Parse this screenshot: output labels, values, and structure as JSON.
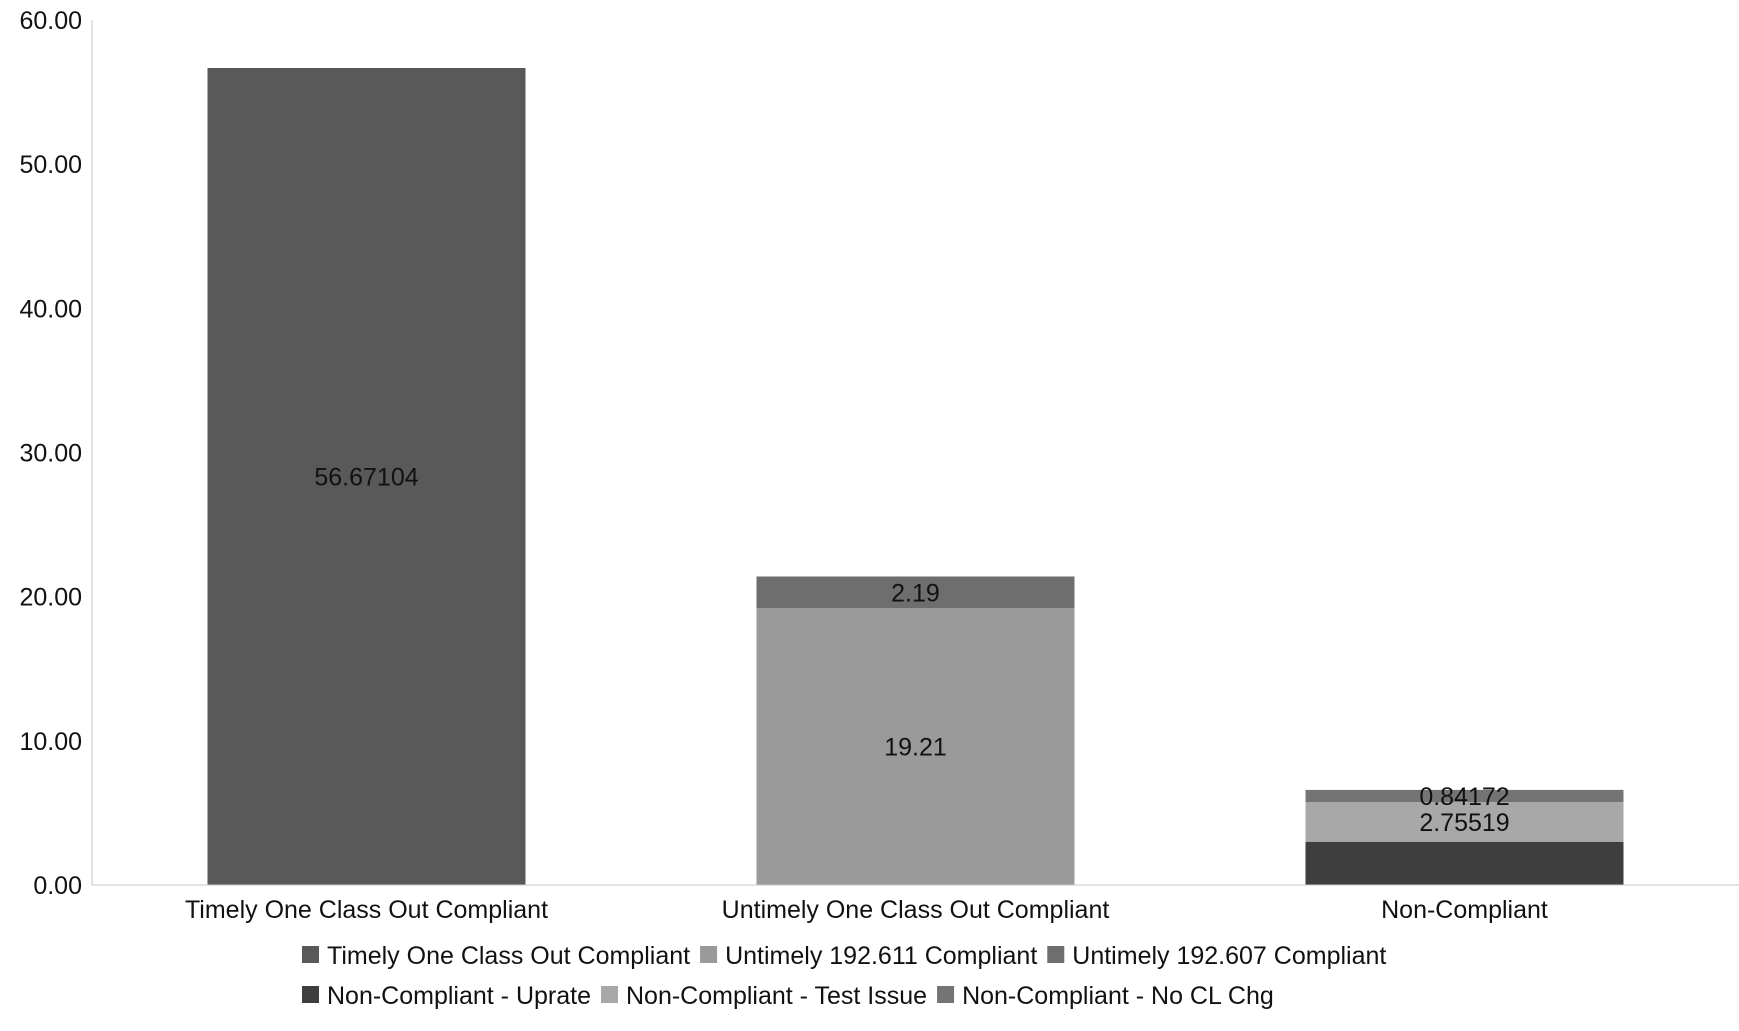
{
  "chart_data": {
    "type": "bar",
    "stacked": true,
    "title": "",
    "xlabel": "",
    "ylabel": "",
    "ylim": [
      0,
      60
    ],
    "ytick_values": [
      0,
      10,
      20,
      30,
      40,
      50,
      60
    ],
    "ytick_labels": [
      "0.00",
      "10.00",
      "20.00",
      "30.00",
      "40.00",
      "50.00",
      "60.00"
    ],
    "categories": [
      "Timely One Class Out Compliant",
      "Untimely One Class Out Compliant",
      "Non-Compliant"
    ],
    "grid": false,
    "legend_position": "bottom",
    "series": [
      {
        "name": "Timely One Class Out Compliant",
        "color": "#595959",
        "values": [
          56.67104,
          0,
          0
        ],
        "labels": [
          "56.67104",
          "",
          ""
        ]
      },
      {
        "name": "Untimely 192.611 Compliant",
        "color": "#9a9a9a",
        "values": [
          0,
          19.21,
          0
        ],
        "labels": [
          "",
          "19.21",
          ""
        ]
      },
      {
        "name": "Untimely 192.607 Compliant",
        "color": "#6e6e6e",
        "values": [
          0,
          2.19,
          0
        ],
        "labels": [
          "",
          "2.19",
          ""
        ]
      },
      {
        "name": "Non-Compliant - Uprate",
        "color": "#3e3e3e",
        "values": [
          0,
          0,
          3.0
        ],
        "labels": [
          "",
          "",
          ""
        ]
      },
      {
        "name": "Non-Compliant - Test Issue",
        "color": "#a8a8a8",
        "values": [
          0,
          0,
          2.75519
        ],
        "labels": [
          "",
          "",
          "2.75519"
        ]
      },
      {
        "name": "Non-Compliant - No CL Chg",
        "color": "#747474",
        "values": [
          0,
          0,
          0.84172
        ],
        "labels": [
          "",
          "",
          "0.84172"
        ]
      }
    ]
  }
}
